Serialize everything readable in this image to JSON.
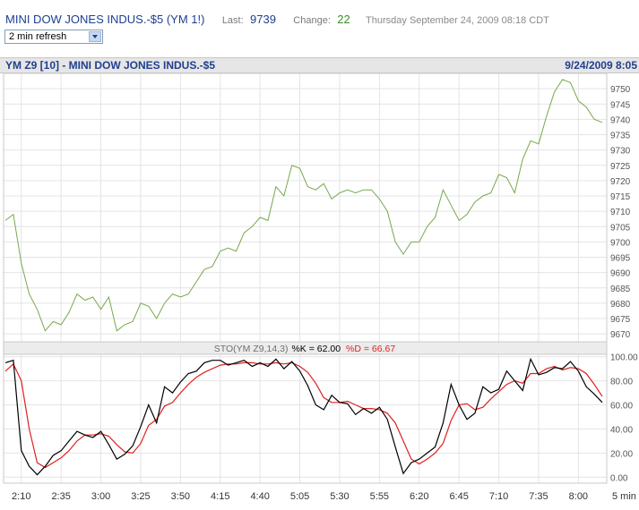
{
  "quote": {
    "symbol_title": "MINI DOW JONES INDUS.-$5 (YM 1!)",
    "last_label": "Last:",
    "last_value": "9739",
    "change_label": "Change:",
    "change_value": "22",
    "datetime": "Thursday September 24, 2009 08:18 CDT"
  },
  "refresh_select": {
    "value": "2 min refresh"
  },
  "chart_header": {
    "title": "YM Z9 [10] - MINI DOW JONES INDUS.-$5",
    "date": "9/24/2009 8:05"
  },
  "stochastic_legend": {
    "name": "STO(YM Z9,14,3)",
    "k_text": "%K = 62.00",
    "d_text": "%D = 66.67"
  },
  "colors": {
    "price_line": "#77a84c",
    "k_line": "#000000",
    "d_line": "#e02020",
    "title_blue": "#1f3f8f"
  },
  "chart_data": [
    {
      "type": "line",
      "x_interval": "5 min",
      "y_ticks": [
        9670,
        9675,
        9680,
        9685,
        9690,
        9695,
        9700,
        9705,
        9710,
        9715,
        9720,
        9725,
        9730,
        9735,
        9740,
        9745,
        9750
      ],
      "ylim": [
        9668,
        9755
      ],
      "series": [
        {
          "values": [
            9707,
            9709,
            9693,
            9683,
            9678,
            9671,
            9674,
            9673,
            9677,
            9683,
            9681,
            9682,
            9678,
            9682,
            9671,
            9673,
            9674,
            9680,
            9679,
            9675,
            9680,
            9683,
            9682,
            9683,
            9687,
            9691,
            9692,
            9697,
            9698,
            9697,
            9703,
            9705,
            9708,
            9707,
            9718,
            9715,
            9725,
            9724,
            9718,
            9717,
            9719,
            9714,
            9716,
            9717,
            9716,
            9717,
            9717,
            9714,
            9710,
            9700,
            9696,
            9700,
            9700,
            9705,
            9708,
            9717,
            9712,
            9707,
            9709,
            9713,
            9715,
            9716,
            9722,
            9721,
            9716,
            9727,
            9733,
            9732,
            9741,
            9749,
            9753,
            9752,
            9746,
            9744,
            9740,
            9739
          ]
        }
      ]
    },
    {
      "type": "line",
      "y_ticks": [
        0,
        20,
        40,
        60,
        80,
        100
      ],
      "ylim": [
        -5,
        102
      ],
      "x_tick_labels": [
        "2:10",
        "2:35",
        "3:00",
        "3:25",
        "3:50",
        "4:15",
        "4:40",
        "5:05",
        "5:30",
        "5:55",
        "6:20",
        "6:45",
        "7:10",
        "7:35",
        "8:00"
      ],
      "x_unit_label": "5 min",
      "series": [
        {
          "values": [
            95,
            97,
            22,
            9,
            2,
            9,
            18,
            22,
            30,
            38,
            35,
            33,
            38,
            27,
            15,
            19,
            26,
            42,
            60,
            45,
            75,
            70,
            79,
            86,
            88,
            95,
            97,
            97,
            93,
            95,
            97,
            92,
            95,
            92,
            98,
            90,
            96,
            88,
            76,
            60,
            56,
            68,
            62,
            61,
            52,
            57,
            53,
            58,
            48,
            25,
            3,
            12,
            15,
            20,
            25,
            45,
            77,
            60,
            48,
            53,
            75,
            70,
            73,
            88,
            80,
            72,
            98,
            85,
            87,
            91,
            90,
            96,
            88,
            75,
            69,
            62
          ]
        },
        {
          "values": [
            88,
            94,
            80,
            40,
            12,
            8,
            12,
            16,
            22,
            30,
            35,
            35,
            36,
            34,
            27,
            21,
            20,
            28,
            43,
            48,
            59,
            62,
            70,
            77,
            83,
            87,
            90,
            93,
            94,
            94,
            95,
            95,
            94,
            94,
            95,
            94,
            95,
            92,
            87,
            78,
            66,
            62,
            62,
            63,
            60,
            57,
            57,
            56,
            53,
            45,
            30,
            15,
            11,
            15,
            20,
            28,
            47,
            60,
            61,
            56,
            58,
            65,
            71,
            77,
            80,
            78,
            86,
            86,
            90,
            92,
            89,
            91,
            90,
            86,
            77,
            67
          ]
        }
      ]
    }
  ]
}
